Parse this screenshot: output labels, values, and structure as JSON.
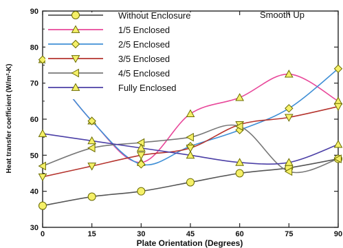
{
  "chart_data": {
    "type": "line",
    "annotation": "Smooth Up",
    "xlabel": "Plate Orientation (Degrees)",
    "ylabel": "Heat transfer coefficient (W/m²-K)",
    "xlim": [
      0,
      90
    ],
    "ylim": [
      30,
      90
    ],
    "xticks": [
      0,
      15,
      30,
      45,
      60,
      75,
      90
    ],
    "yticks": [
      30,
      40,
      50,
      60,
      70,
      80,
      90
    ],
    "xtick_labels": [
      "0",
      "15",
      "30",
      "45",
      "60",
      "75",
      "90"
    ],
    "ytick_labels": [
      "30",
      "40",
      "50",
      "60",
      "70",
      "80",
      "90"
    ],
    "grid": false,
    "legend_placement": "top-left",
    "x": [
      0,
      15,
      30,
      45,
      60,
      75,
      90
    ],
    "series": [
      {
        "name": "Without Enclosure",
        "marker": "circle",
        "color": "#555555",
        "values": [
          36,
          38.5,
          40,
          42.5,
          45,
          46.5,
          49
        ]
      },
      {
        "name": "1/5 Enclosed",
        "marker": "triangle-up",
        "color": "#e8479a",
        "values": [
          76.5,
          59.5,
          48,
          61.5,
          66,
          72.5,
          65
        ]
      },
      {
        "name": "2/5 Enclosed",
        "marker": "diamond",
        "color": "#3f8fd6",
        "values": [
          76.5,
          59.5,
          47.5,
          52.5,
          57,
          63,
          74
        ]
      },
      {
        "name": "3/5 Enclosed",
        "marker": "triangle-down",
        "color": "#b5342e",
        "values": [
          44,
          47,
          50,
          52,
          58.5,
          60.5,
          63.5
        ]
      },
      {
        "name": "4/5 Enclosed",
        "marker": "triangle-left",
        "color": "#777777",
        "values": [
          47,
          52,
          53.5,
          55,
          58,
          45.5,
          49
        ]
      },
      {
        "name": "Fully Enclosed",
        "marker": "triangle-up",
        "color": "#4b3fa6",
        "values": [
          56,
          54,
          52,
          50,
          48,
          48,
          53
        ]
      }
    ],
    "marker_fill": "#f5f068",
    "marker_stroke": "#6b6b00"
  }
}
